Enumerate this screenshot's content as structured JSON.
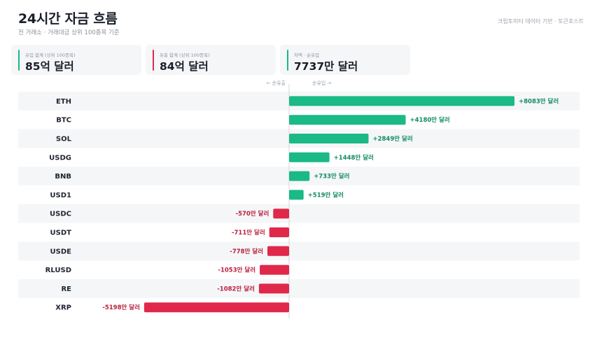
{
  "header": {
    "title": "24시간 자금 흐름",
    "subtitle": "전 거래소 · 거래대금 상위 100종목 기준",
    "source": "크립토미터 데이터 기반 · 토큰포스트"
  },
  "stats": [
    {
      "label": "유입 합계 (상위 100종목)",
      "value": "85억 달러",
      "color": "#1ab985"
    },
    {
      "label": "유출 합계 (상위 100종목)",
      "value": "84억 달러",
      "color": "#e0284a"
    },
    {
      "label": "차액 · 순유입",
      "value": "7737만 달러",
      "color": "#1ab985"
    }
  ],
  "direction": {
    "left": "← 순유출",
    "right": "순유입 →"
  },
  "colors": {
    "inflow": "#1ab985",
    "outflow": "#e0284a",
    "row_alt": "#f5f6f8"
  },
  "chart_data": {
    "type": "bar",
    "orientation": "horizontal",
    "unit": "만 달러",
    "categories": [
      "ETH",
      "BTC",
      "SOL",
      "USDG",
      "BNB",
      "USD1",
      "USDC",
      "USDT",
      "USDE",
      "RLUSD",
      "RE",
      "XRP"
    ],
    "values": [
      8083,
      4180,
      2849,
      1448,
      733,
      519,
      -570,
      -711,
      -778,
      -1053,
      -1082,
      -5198
    ],
    "labels": [
      "+8083만 달러",
      "+4180만 달러",
      "+2849만 달러",
      "+1448만 달러",
      "+733만 달러",
      "+519만 달러",
      "-570만 달러",
      "-711만 달러",
      "-778만 달러",
      "-1053만 달러",
      "-1082만 달러",
      "-5198만 달러"
    ]
  }
}
